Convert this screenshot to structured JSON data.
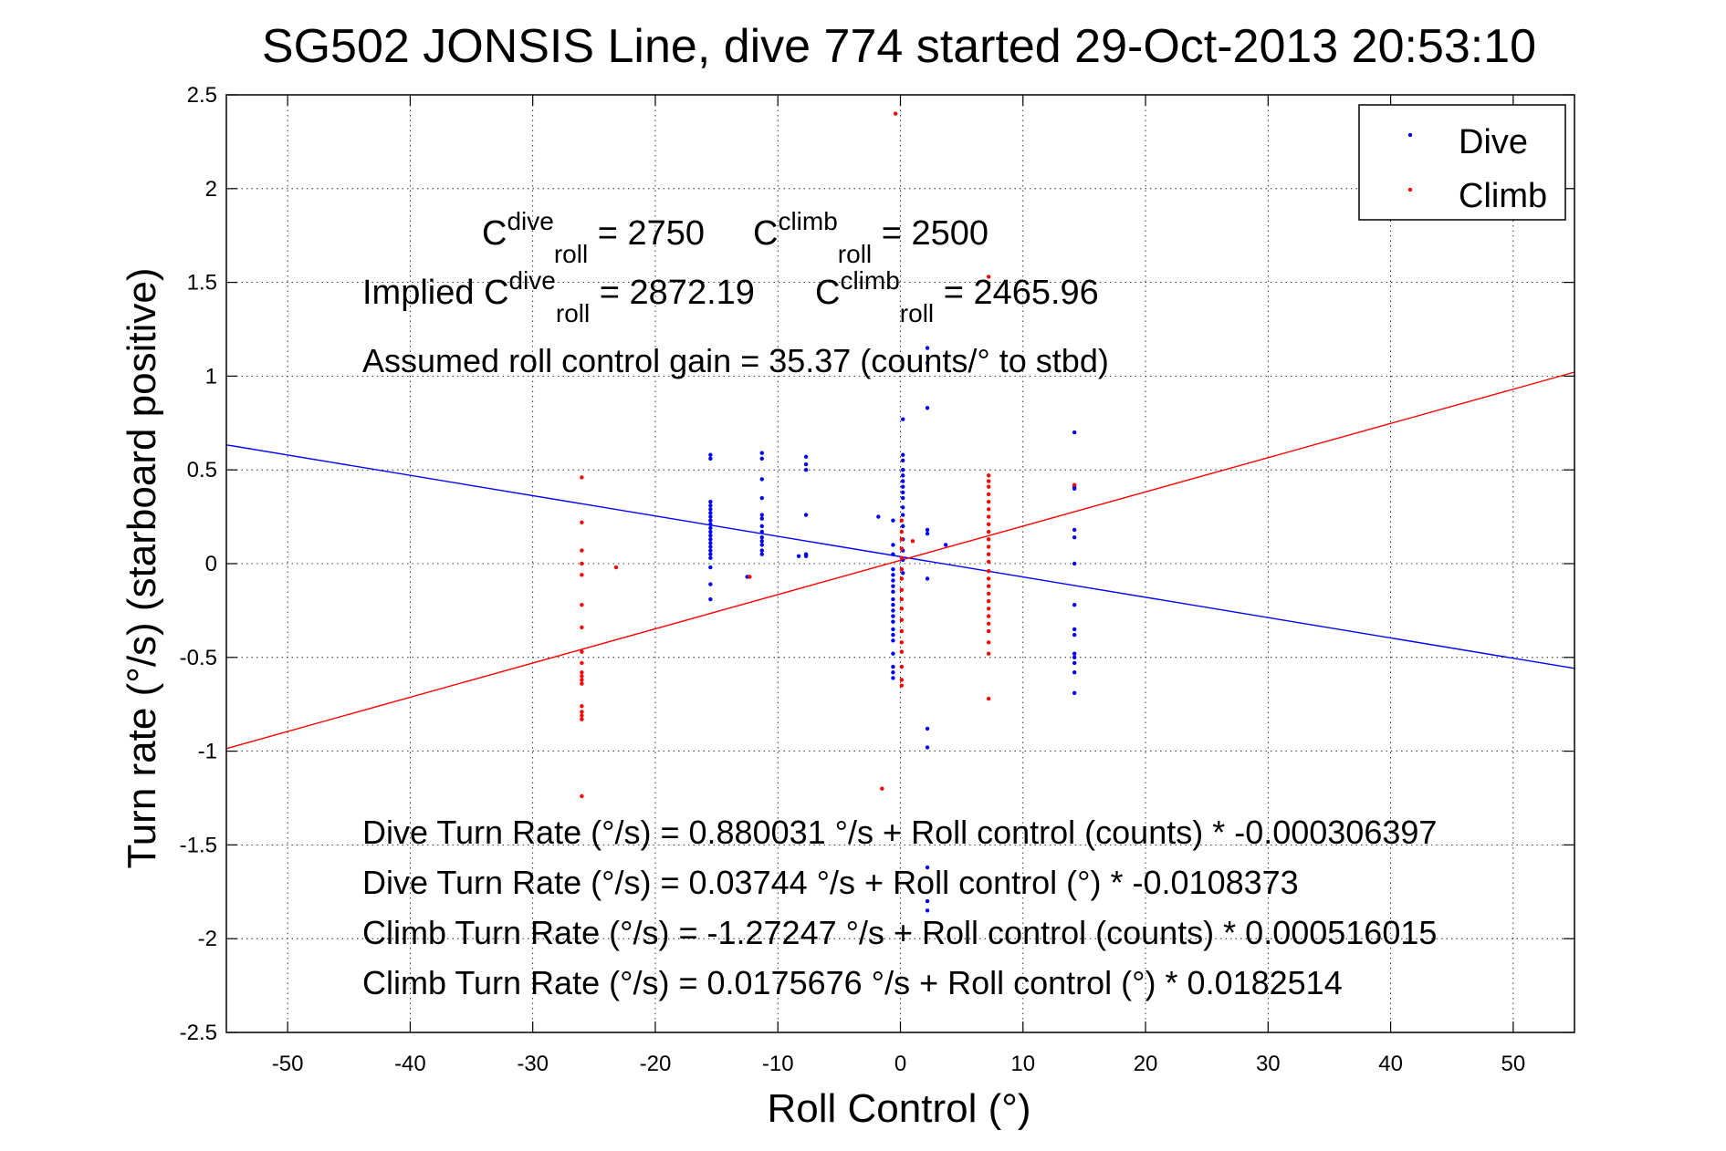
{
  "chart_data": {
    "type": "scatter",
    "title": "SG502 JONSIS Line, dive 774 started 29-Oct-2013 20:53:10",
    "xlabel": "Roll Control (°)",
    "ylabel": "Turn rate (°/s)  (starboard positive)",
    "xlim": [
      -55,
      55
    ],
    "ylim": [
      -2.5,
      2.5
    ],
    "x_ticks": [
      -50,
      -40,
      -30,
      -20,
      -10,
      0,
      10,
      20,
      30,
      40,
      50
    ],
    "y_ticks": [
      -2.5,
      -2,
      -1.5,
      -1,
      -0.5,
      0,
      0.5,
      1,
      1.5,
      2,
      2.5
    ],
    "grid": true,
    "legend": {
      "position": "top-right",
      "entries": [
        {
          "name": "Dive",
          "color": "#0000ff"
        },
        {
          "name": "Climb",
          "color": "#ff0000"
        }
      ]
    },
    "annotations": {
      "c_roll_dive": {
        "base": "C",
        "sup": "dive",
        "sub": "roll",
        "value": " = 2750"
      },
      "c_roll_climb": {
        "base": "C",
        "sup": "climb",
        "sub": "roll",
        "value": " = 2500"
      },
      "implied_dive": {
        "prefix": "Implied ",
        "base": "C",
        "sup": "dive",
        "sub": "roll",
        "value": " = 2872.19"
      },
      "implied_climb": {
        "base": "C",
        "sup": "climb",
        "sub": "roll",
        "value": " = 2465.96"
      },
      "gain": "Assumed roll control gain = 35.37 (counts/° to stbd)",
      "eq_dive_counts": "Dive Turn Rate (°/s) = 0.880031 °/s + Roll control (counts) * -0.000306397",
      "eq_dive_deg": "Dive Turn Rate (°/s) = 0.03744 °/s + Roll control (°) * -0.0108373",
      "eq_climb_counts": "Climb Turn Rate (°/s) = -1.27247 °/s + Roll control (counts) * 0.000516015",
      "eq_climb_deg": "Climb Turn Rate (°/s) = 0.0175676 °/s + Roll control (°) * 0.0182514"
    },
    "fit_lines": [
      {
        "name": "Dive",
        "color": "#0000ff",
        "intercept": 0.03744,
        "slope": -0.0108373
      },
      {
        "name": "Climb",
        "color": "#ff0000",
        "intercept": 0.0175676,
        "slope": 0.0182514
      }
    ],
    "series": [
      {
        "name": "Dive",
        "color": "#0000ff",
        "points": [
          [
            -15.5,
            0.58
          ],
          [
            -15.5,
            0.56
          ],
          [
            -15.5,
            0.33
          ],
          [
            -15.5,
            0.31
          ],
          [
            -15.5,
            0.29
          ],
          [
            -15.5,
            0.27
          ],
          [
            -15.5,
            0.25
          ],
          [
            -15.5,
            0.23
          ],
          [
            -15.5,
            0.21
          ],
          [
            -15.5,
            0.19
          ],
          [
            -15.5,
            0.17
          ],
          [
            -15.5,
            0.15
          ],
          [
            -15.5,
            0.13
          ],
          [
            -15.5,
            0.11
          ],
          [
            -15.5,
            0.09
          ],
          [
            -15.5,
            0.07
          ],
          [
            -15.5,
            0.05
          ],
          [
            -15.5,
            0.03
          ],
          [
            -15.5,
            -0.02
          ],
          [
            -15.5,
            -0.11
          ],
          [
            -15.5,
            -0.19
          ],
          [
            -11.3,
            0.59
          ],
          [
            -11.3,
            0.56
          ],
          [
            -11.3,
            0.45
          ],
          [
            -11.3,
            0.35
          ],
          [
            -11.3,
            0.26
          ],
          [
            -11.3,
            0.24
          ],
          [
            -11.3,
            0.2
          ],
          [
            -11.3,
            0.17
          ],
          [
            -11.3,
            0.14
          ],
          [
            -11.3,
            0.12
          ],
          [
            -11.3,
            0.1
          ],
          [
            -11.3,
            0.07
          ],
          [
            -11.3,
            0.05
          ],
          [
            -7.7,
            0.57
          ],
          [
            -7.7,
            0.53
          ],
          [
            -7.7,
            0.5
          ],
          [
            -7.7,
            0.26
          ],
          [
            -7.7,
            0.04
          ],
          [
            -8.3,
            0.04
          ],
          [
            -1.8,
            0.25
          ],
          [
            -0.6,
            0.23
          ],
          [
            -0.6,
            0.1
          ],
          [
            -0.6,
            0.05
          ],
          [
            -0.6,
            -0.03
          ],
          [
            -0.6,
            -0.06
          ],
          [
            -0.6,
            -0.09
          ],
          [
            -0.6,
            -0.12
          ],
          [
            -0.6,
            -0.15
          ],
          [
            -0.6,
            -0.19
          ],
          [
            -0.6,
            -0.22
          ],
          [
            -0.6,
            -0.25
          ],
          [
            -0.6,
            -0.28
          ],
          [
            -0.6,
            -0.31
          ],
          [
            -0.6,
            -0.35
          ],
          [
            -0.6,
            -0.38
          ],
          [
            -0.6,
            -0.41
          ],
          [
            -0.6,
            -0.48
          ],
          [
            -0.6,
            -0.55
          ],
          [
            -0.6,
            -0.58
          ],
          [
            -0.6,
            -0.61
          ],
          [
            0.2,
            0.77
          ],
          [
            0.2,
            0.58
          ],
          [
            0.2,
            0.55
          ],
          [
            0.2,
            0.5
          ],
          [
            0.2,
            0.47
          ],
          [
            0.2,
            0.44
          ],
          [
            0.2,
            0.41
          ],
          [
            0.2,
            0.38
          ],
          [
            0.2,
            0.35
          ],
          [
            0.2,
            0.3
          ],
          [
            0.2,
            0.26
          ],
          [
            0.2,
            0.2
          ],
          [
            0.2,
            0.13
          ],
          [
            0.2,
            0.07
          ],
          [
            0.2,
            0.02
          ],
          [
            0.2,
            -0.05
          ],
          [
            2.2,
            1.15
          ],
          [
            2.2,
            1.07
          ],
          [
            2.2,
            0.83
          ],
          [
            2.2,
            0.18
          ],
          [
            2.2,
            0.16
          ],
          [
            2.2,
            -0.08
          ],
          [
            2.2,
            -0.88
          ],
          [
            2.2,
            -0.98
          ],
          [
            2.2,
            -1.62
          ],
          [
            2.2,
            -1.8
          ],
          [
            2.2,
            -1.85
          ],
          [
            3.7,
            0.1
          ],
          [
            14.2,
            0.7
          ],
          [
            14.2,
            0.41
          ],
          [
            14.2,
            0.4
          ],
          [
            14.2,
            0.18
          ],
          [
            14.2,
            0.14
          ],
          [
            14.2,
            0.0
          ],
          [
            14.2,
            -0.22
          ],
          [
            14.2,
            -0.35
          ],
          [
            14.2,
            -0.38
          ],
          [
            14.2,
            -0.48
          ],
          [
            14.2,
            -0.5
          ],
          [
            14.2,
            -0.53
          ],
          [
            14.2,
            -0.58
          ],
          [
            14.2,
            -0.69
          ],
          [
            -12.5,
            -0.07
          ],
          [
            -7.7,
            0.05
          ]
        ]
      },
      {
        "name": "Climb",
        "color": "#ff0000",
        "points": [
          [
            -26.0,
            0.46
          ],
          [
            -26.0,
            0.22
          ],
          [
            -26.0,
            0.07
          ],
          [
            -26.0,
            0.0
          ],
          [
            -26.0,
            -0.06
          ],
          [
            -26.0,
            -0.22
          ],
          [
            -26.0,
            -0.34
          ],
          [
            -26.0,
            -0.47
          ],
          [
            -26.0,
            -0.53
          ],
          [
            -26.0,
            -0.58
          ],
          [
            -26.0,
            -0.6
          ],
          [
            -26.0,
            -0.62
          ],
          [
            -26.0,
            -0.64
          ],
          [
            -26.0,
            -0.76
          ],
          [
            -26.0,
            -0.79
          ],
          [
            -26.0,
            -0.81
          ],
          [
            -26.0,
            -0.83
          ],
          [
            -26.0,
            -1.24
          ],
          [
            -23.2,
            -0.02
          ],
          [
            -12.3,
            -0.07
          ],
          [
            -0.4,
            2.4
          ],
          [
            -1.5,
            -1.2
          ],
          [
            0.1,
            0.23
          ],
          [
            0.1,
            0.17
          ],
          [
            0.1,
            0.13
          ],
          [
            0.1,
            0.08
          ],
          [
            0.1,
            0.03
          ],
          [
            0.1,
            -0.03
          ],
          [
            0.1,
            -0.08
          ],
          [
            0.1,
            -0.14
          ],
          [
            0.1,
            -0.19
          ],
          [
            0.1,
            -0.24
          ],
          [
            0.1,
            -0.3
          ],
          [
            0.1,
            -0.36
          ],
          [
            0.1,
            -0.42
          ],
          [
            0.1,
            -0.47
          ],
          [
            0.1,
            -0.55
          ],
          [
            0.1,
            -0.62
          ],
          [
            0.1,
            -0.65
          ],
          [
            1.0,
            0.12
          ],
          [
            7.2,
            1.53
          ],
          [
            7.2,
            0.47
          ],
          [
            7.2,
            0.44
          ],
          [
            7.2,
            0.41
          ],
          [
            7.2,
            0.37
          ],
          [
            7.2,
            0.33
          ],
          [
            7.2,
            0.29
          ],
          [
            7.2,
            0.25
          ],
          [
            7.2,
            0.21
          ],
          [
            7.2,
            0.17
          ],
          [
            7.2,
            0.13
          ],
          [
            7.2,
            0.09
          ],
          [
            7.2,
            0.05
          ],
          [
            7.2,
            0.01
          ],
          [
            7.2,
            -0.04
          ],
          [
            7.2,
            -0.08
          ],
          [
            7.2,
            -0.12
          ],
          [
            7.2,
            -0.16
          ],
          [
            7.2,
            -0.2
          ],
          [
            7.2,
            -0.24
          ],
          [
            7.2,
            -0.28
          ],
          [
            7.2,
            -0.32
          ],
          [
            7.2,
            -0.36
          ],
          [
            7.2,
            -0.42
          ],
          [
            7.2,
            -0.48
          ],
          [
            7.2,
            -0.72
          ],
          [
            14.2,
            0.42
          ]
        ]
      }
    ]
  }
}
